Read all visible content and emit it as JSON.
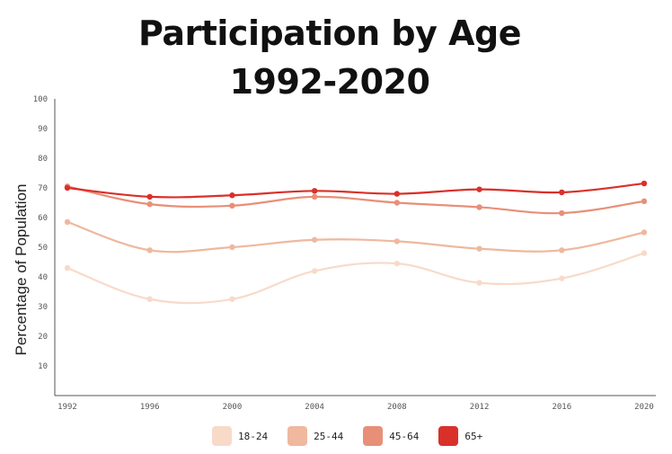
{
  "chart_data": {
    "type": "line",
    "title_lines": [
      "Participation by Age",
      "1992-2020"
    ],
    "xlabel": "",
    "ylabel": "Percentage of Population",
    "x": [
      "1992",
      "1996",
      "2000",
      "2004",
      "2008",
      "2012",
      "2016",
      "2020"
    ],
    "yticks": [
      "10",
      "20",
      "30",
      "40",
      "50",
      "60",
      "70",
      "80",
      "90",
      "100"
    ],
    "ylim": [
      0,
      100
    ],
    "grid": false,
    "legend_position": "bottom",
    "series": [
      {
        "name": "18-24",
        "color": "#f8dac9",
        "values": [
          43,
          32.5,
          32.5,
          42,
          44.5,
          38,
          39.5,
          48
        ]
      },
      {
        "name": "25-44",
        "color": "#efb89f",
        "values": [
          58.5,
          49,
          50,
          52.5,
          52,
          49.5,
          49,
          55
        ]
      },
      {
        "name": "45-64",
        "color": "#e88f78",
        "values": [
          70.5,
          64.5,
          64,
          67,
          65,
          63.5,
          61.5,
          65.5
        ]
      },
      {
        "name": "65+",
        "color": "#d9302a",
        "values": [
          70,
          67,
          67.5,
          69,
          68,
          69.5,
          68.5,
          71.5
        ]
      }
    ]
  }
}
